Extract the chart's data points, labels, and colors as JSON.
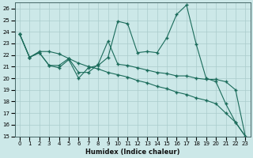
{
  "xlabel": "Humidex (Indice chaleur)",
  "ylabel": "",
  "xlim": [
    -0.5,
    23.5
  ],
  "ylim": [
    15,
    26.5
  ],
  "yticks": [
    15,
    16,
    17,
    18,
    19,
    20,
    21,
    22,
    23,
    24,
    25,
    26
  ],
  "xticks": [
    0,
    1,
    2,
    3,
    4,
    5,
    6,
    7,
    8,
    9,
    10,
    11,
    12,
    13,
    14,
    15,
    16,
    17,
    18,
    19,
    20,
    21,
    22,
    23
  ],
  "bg_color": "#cce8e8",
  "grid_color": "#aacccc",
  "line_color": "#1a6b5a",
  "line1_x": [
    0,
    1,
    2,
    3,
    4,
    5,
    6,
    7,
    8,
    9,
    10,
    11,
    12,
    13,
    14,
    15,
    16,
    17,
    18,
    19,
    20,
    21,
    22,
    23
  ],
  "line1_y": [
    23.8,
    21.8,
    22.2,
    21.1,
    20.9,
    21.6,
    20.0,
    20.9,
    21.1,
    21.8,
    24.9,
    24.7,
    22.2,
    22.3,
    22.2,
    23.5,
    25.5,
    26.3,
    22.9,
    20.0,
    19.7,
    17.8,
    16.2,
    15.0
  ],
  "line2_x": [
    0,
    1,
    2,
    3,
    4,
    5,
    6,
    7,
    8,
    9,
    10,
    11,
    12,
    13,
    14,
    15,
    16,
    17,
    18,
    19,
    20,
    21,
    22,
    23
  ],
  "line2_y": [
    23.8,
    21.8,
    22.3,
    22.3,
    22.1,
    21.7,
    21.3,
    21.0,
    20.8,
    20.5,
    20.3,
    20.1,
    19.8,
    19.6,
    19.3,
    19.1,
    18.8,
    18.6,
    18.3,
    18.1,
    17.8,
    17.0,
    16.2,
    15.0
  ],
  "line3_x": [
    0,
    1,
    2,
    3,
    4,
    5,
    6,
    7,
    8,
    9,
    10,
    11,
    12,
    13,
    14,
    15,
    16,
    17,
    18,
    19,
    20,
    21,
    22,
    23
  ],
  "line3_y": [
    23.8,
    21.8,
    22.2,
    21.1,
    21.1,
    21.7,
    20.5,
    20.5,
    21.2,
    23.2,
    21.2,
    21.1,
    20.9,
    20.7,
    20.5,
    20.4,
    20.2,
    20.2,
    20.0,
    19.9,
    19.9,
    19.7,
    19.0,
    15.0
  ]
}
